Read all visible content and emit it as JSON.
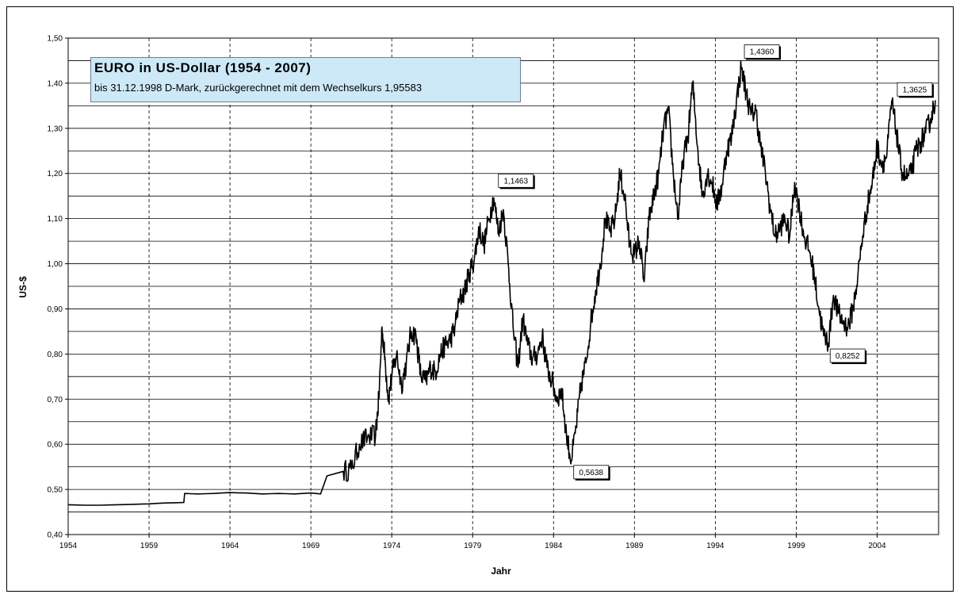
{
  "chart_data": {
    "type": "line",
    "title": "EURO in US-Dollar (1954 - 2007)",
    "subtitle": "bis 31.12.1998 D-Mark, zurückgerechnet mit dem Wechselkurs 1,95583",
    "xlabel": "Jahr",
    "ylabel": "US-$",
    "xlim": [
      1954,
      2007.8
    ],
    "ylim": [
      0.4,
      1.5
    ],
    "x_ticks": [
      "1954",
      "1959",
      "1964",
      "1969",
      "1974",
      "1979",
      "1984",
      "1989",
      "1994",
      "1999",
      "2004"
    ],
    "y_ticks": [
      "0,40",
      "0,45",
      "0,50",
      "0,55",
      "0,60",
      "0,65",
      "0,70",
      "0,75",
      "0,80",
      "0,85",
      "0,90",
      "0,95",
      "1,00",
      "1,05",
      "1,10",
      "1,15",
      "1,20",
      "1,25",
      "1,30",
      "1,35",
      "1,40",
      "1,45",
      "1,50"
    ],
    "y_tick_labels": [
      "0,40",
      "0,50",
      "0,60",
      "0,70",
      "0,80",
      "0,90",
      "1,00",
      "1,10",
      "1,20",
      "1,30",
      "1,40",
      "1,50"
    ],
    "grid": {
      "horizontal": "solid",
      "vertical": "dashed"
    },
    "series": [
      {
        "x": [
          1954,
          1955,
          1956,
          1957,
          1958,
          1959,
          1960,
          1961.15,
          1961.2,
          1962,
          1963,
          1964,
          1965,
          1966,
          1967,
          1968,
          1969,
          1969.6,
          1969.8,
          1970,
          1970.5,
          1971,
          1971.5,
          1972,
          1972.5,
          1973,
          1973.2,
          1973.4,
          1973.6,
          1973.8,
          1974,
          1974.3,
          1974.6,
          1974.9,
          1975.2,
          1975.5,
          1975.8,
          1976.1,
          1976.4,
          1976.7,
          1977,
          1977.3,
          1977.6,
          1977.9,
          1978.2,
          1978.5,
          1978.8,
          1979.1,
          1979.4,
          1979.7,
          1980,
          1980.3,
          1980.6,
          1980.9,
          1981.2,
          1981.5,
          1981.8,
          1982.1,
          1982.4,
          1982.7,
          1983,
          1983.3,
          1983.6,
          1983.9,
          1984.2,
          1984.5,
          1984.8,
          1985.1,
          1985.4,
          1985.7,
          1986,
          1986.3,
          1986.6,
          1986.9,
          1987.2,
          1987.5,
          1987.8,
          1988.1,
          1988.4,
          1988.7,
          1989,
          1989.3,
          1989.6,
          1989.9,
          1990.2,
          1990.5,
          1990.8,
          1991.1,
          1991.4,
          1991.7,
          1992,
          1992.3,
          1992.6,
          1992.9,
          1993.2,
          1993.5,
          1993.8,
          1994.1,
          1994.4,
          1994.7,
          1995,
          1995.3,
          1995.6,
          1995.9,
          1996.2,
          1996.5,
          1996.8,
          1997.1,
          1997.4,
          1997.7,
          1998,
          1998.3,
          1998.6,
          1998.9,
          1999.2,
          1999.5,
          1999.8,
          2000.1,
          2000.4,
          2000.7,
          2001,
          2001.3,
          2001.6,
          2001.9,
          2002.2,
          2002.5,
          2002.8,
          2003.1,
          2003.4,
          2003.7,
          2004,
          2004.3,
          2004.6,
          2004.9,
          2005.2,
          2005.5,
          2005.8,
          2006.1,
          2006.4,
          2006.7,
          2007,
          2007.3,
          2007.6
        ],
        "values": [
          0.466,
          0.465,
          0.465,
          0.466,
          0.467,
          0.468,
          0.47,
          0.471,
          0.491,
          0.49,
          0.491,
          0.493,
          0.492,
          0.49,
          0.491,
          0.49,
          0.492,
          0.49,
          0.51,
          0.53,
          0.535,
          0.54,
          0.545,
          0.6,
          0.615,
          0.62,
          0.7,
          0.86,
          0.78,
          0.7,
          0.75,
          0.8,
          0.73,
          0.78,
          0.85,
          0.84,
          0.75,
          0.74,
          0.77,
          0.76,
          0.8,
          0.82,
          0.83,
          0.86,
          0.92,
          0.94,
          0.98,
          1.01,
          1.08,
          1.04,
          1.1,
          1.146,
          1.07,
          1.12,
          1.0,
          0.86,
          0.77,
          0.88,
          0.82,
          0.79,
          0.8,
          0.84,
          0.77,
          0.74,
          0.7,
          0.72,
          0.62,
          0.5638,
          0.64,
          0.73,
          0.78,
          0.87,
          0.94,
          1.0,
          1.1,
          1.07,
          1.1,
          1.2,
          1.15,
          1.04,
          1.02,
          1.05,
          0.96,
          1.1,
          1.15,
          1.2,
          1.3,
          1.34,
          1.2,
          1.1,
          1.23,
          1.28,
          1.4,
          1.26,
          1.15,
          1.2,
          1.18,
          1.13,
          1.17,
          1.25,
          1.28,
          1.36,
          1.436,
          1.38,
          1.33,
          1.34,
          1.26,
          1.2,
          1.12,
          1.06,
          1.08,
          1.1,
          1.06,
          1.18,
          1.12,
          1.06,
          1.03,
          0.98,
          0.9,
          0.84,
          0.8252,
          0.93,
          0.89,
          0.87,
          0.86,
          0.9,
          0.97,
          1.06,
          1.13,
          1.18,
          1.26,
          1.22,
          1.24,
          1.36,
          1.29,
          1.21,
          1.19,
          1.2,
          1.25,
          1.27,
          1.29,
          1.32,
          1.3625
        ]
      }
    ],
    "annotations": [
      {
        "label": "1,1463",
        "x": 1980.3,
        "y": 1.1463
      },
      {
        "label": "0,5638",
        "x": 1985.1,
        "y": 0.5638
      },
      {
        "label": "1,4360",
        "x": 1995.6,
        "y": 1.436
      },
      {
        "label": "0,8252",
        "x": 2001.0,
        "y": 0.8252
      },
      {
        "label": "1,3625",
        "x": 2007.6,
        "y": 1.3625
      }
    ]
  }
}
